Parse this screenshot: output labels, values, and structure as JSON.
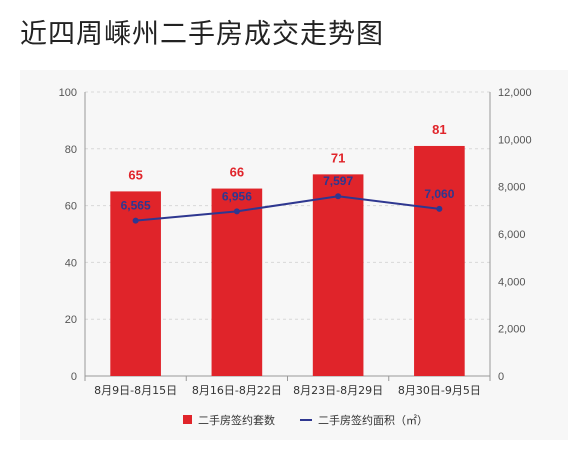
{
  "title": "近四周嵊州二手房成交走势图",
  "chart_data": {
    "type": "bar+line",
    "categories": [
      "8月9日-8月15日",
      "8月16日-8月22日",
      "8月23日-8月29日",
      "8月30日-9月5日"
    ],
    "series": [
      {
        "name": "二手房签约套数",
        "type": "bar",
        "axis": "left",
        "values": [
          65,
          66,
          71,
          81
        ],
        "labels": [
          "65",
          "66",
          "71",
          "81"
        ],
        "color": "#e0242a"
      },
      {
        "name": "二手房签约面积（㎡）",
        "type": "line",
        "axis": "right",
        "values": [
          6565,
          6956,
          7597,
          7060
        ],
        "labels": [
          "6,565",
          "6,956",
          "7,597",
          "7,060"
        ],
        "color": "#2e3790"
      }
    ],
    "y_left": {
      "ylim": [
        0,
        100
      ],
      "ticks": [
        "0",
        "20",
        "40",
        "60",
        "80",
        "100"
      ]
    },
    "y_right": {
      "ylim": [
        0,
        12000
      ],
      "ticks": [
        "0",
        "2,000",
        "4,000",
        "6,000",
        "8,000",
        "10,000",
        "12,000"
      ]
    },
    "grid": "dashed horizontal",
    "legend": "bottom"
  }
}
